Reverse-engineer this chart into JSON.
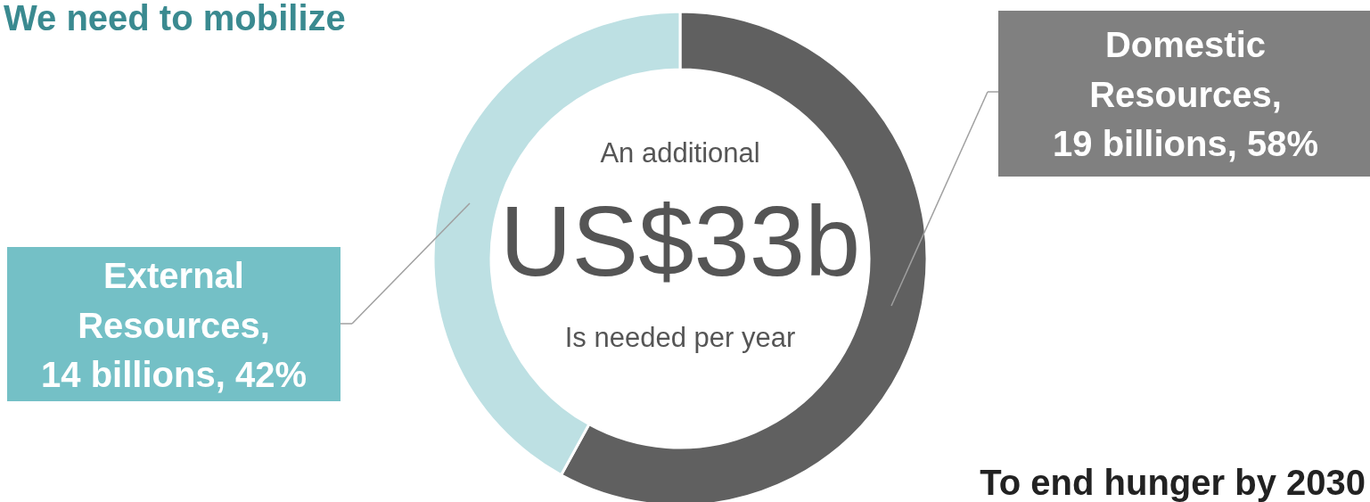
{
  "chart_data": {
    "type": "donut",
    "title": "We need to mobilize",
    "categories": [
      "Domestic Resources, 19 billions, 58%",
      "External Resources, 14 billions, 42%"
    ],
    "values": [
      58,
      42
    ],
    "colors": [
      "#606060",
      "#bde0e3"
    ],
    "annotations": [
      "An additional",
      "US$33b",
      "Is needed per year",
      "To end hunger by 2030"
    ]
  }
}
